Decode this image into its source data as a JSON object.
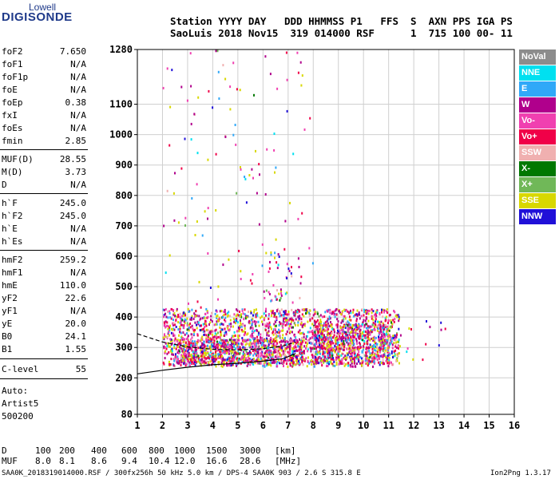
{
  "logo": {
    "line1": "Lowell",
    "line2": "DIGISONDE"
  },
  "header": {
    "line1": "Station YYYY DAY   DDD HHMMSS P1   FFS  S  AXN PPS IGA PS",
    "line2": "SaoLuis 2018 Nov15  319 014000 RSF      1  715 100 00- 11"
  },
  "params": [
    {
      "name": "foF2",
      "value": "7.650"
    },
    {
      "name": "foF1",
      "value": "N/A"
    },
    {
      "name": "foF1p",
      "value": "N/A"
    },
    {
      "name": "foE",
      "value": "N/A"
    },
    {
      "name": "foEp",
      "value": "0.38"
    },
    {
      "name": "fxI",
      "value": "N/A"
    },
    {
      "name": "foEs",
      "value": "N/A"
    },
    {
      "name": "fmin",
      "value": "2.85"
    },
    {
      "name": "MUF(D)",
      "value": "28.55"
    },
    {
      "name": "M(D)",
      "value": "3.73"
    },
    {
      "name": "D",
      "value": "N/A"
    },
    {
      "name": "h`F",
      "value": "245.0"
    },
    {
      "name": "h`F2",
      "value": "245.0"
    },
    {
      "name": "h`E",
      "value": "N/A"
    },
    {
      "name": "h`Es",
      "value": "N/A"
    },
    {
      "name": "hmF2",
      "value": "259.2"
    },
    {
      "name": "hmF1",
      "value": "N/A"
    },
    {
      "name": "hmE",
      "value": "110.0"
    },
    {
      "name": "yF2",
      "value": "22.6"
    },
    {
      "name": "yF1",
      "value": "N/A"
    },
    {
      "name": "yE",
      "value": "20.0"
    },
    {
      "name": "B0",
      "value": "24.1"
    },
    {
      "name": "B1",
      "value": "1.55"
    }
  ],
  "clevel": {
    "name": "C-level",
    "value": "55"
  },
  "auto": {
    "line1": "Auto:",
    "line2": "Artist5",
    "line3": "500200"
  },
  "legend": [
    {
      "label": "NoVal",
      "color": "#8c8c8c"
    },
    {
      "label": "NNE",
      "color": "#00e0f0"
    },
    {
      "label": "E",
      "color": "#30a8f8"
    },
    {
      "label": "W",
      "color": "#b0008c"
    },
    {
      "label": "Vo-",
      "color": "#f040b0"
    },
    {
      "label": "Vo+",
      "color": "#f00048"
    },
    {
      "label": "SSW",
      "color": "#f0b0b0"
    },
    {
      "label": "X-",
      "color": "#007800"
    },
    {
      "label": "X+",
      "color": "#70b858"
    },
    {
      "label": "SSE",
      "color": "#d8d800"
    },
    {
      "label": "NNW",
      "color": "#2010d8"
    }
  ],
  "muf_table": {
    "d_label": "D",
    "d_values": [
      "100",
      "200",
      "400",
      "600",
      "800",
      "1000",
      "1500",
      "3000"
    ],
    "d_unit": "[km]",
    "muf_label": "MUF",
    "muf_values": [
      "8.0",
      "8.1",
      "8.6",
      "9.4",
      "10.4",
      "12.0",
      "16.6",
      "28.6"
    ],
    "muf_unit": "[MHz]"
  },
  "footer": {
    "info": "SAA0K_2018319014000.RSF / 300fx256h 50 kHz 5.0 km / DPS-4 SAA0K 903 / 2.6 S 315.8 E",
    "version": "Ion2Png 1.3.17"
  },
  "chart_data": {
    "type": "scatter",
    "x_ticks": [
      1,
      2,
      3,
      4,
      5,
      6,
      7,
      8,
      9,
      10,
      11,
      12,
      13,
      14,
      15,
      16
    ],
    "y_ticks": [
      80,
      200,
      300,
      400,
      500,
      600,
      700,
      800,
      900,
      1000,
      1100,
      1280
    ],
    "xlim": [
      1,
      16
    ],
    "ylim": [
      80,
      1280
    ],
    "grid": true,
    "legend_position": "right",
    "traces": [
      {
        "style": "solid",
        "x": [
          1.0,
          2.0,
          3.0,
          4.0,
          5.0,
          6.0,
          6.8,
          7.3
        ],
        "y": [
          213,
          225,
          235,
          243,
          248,
          255,
          263,
          280
        ]
      },
      {
        "style": "dashed",
        "x": [
          1.0,
          2.0,
          3.0,
          4.0,
          5.0,
          6.0,
          6.8,
          7.3
        ],
        "y": [
          345,
          318,
          302,
          294,
          292,
          296,
          305,
          318
        ]
      }
    ],
    "echo_regions": [
      {
        "x": [
          2.0,
          11.4
        ],
        "y": [
          240,
          430
        ],
        "density": 0.55
      },
      {
        "x": [
          2.5,
          7.6
        ],
        "y": [
          250,
          330
        ],
        "density": 0.9
      },
      {
        "x": [
          8.0,
          11.0
        ],
        "y": [
          250,
          380
        ],
        "density": 0.7
      },
      {
        "x": [
          6.0,
          7.5
        ],
        "y": [
          320,
          640
        ],
        "density": 0.08
      },
      {
        "x": [
          2.0,
          8.0
        ],
        "y": [
          430,
          1280
        ],
        "density": 0.012
      },
      {
        "x": [
          11.0,
          13.3
        ],
        "y": [
          255,
          390
        ],
        "density": 0.03
      }
    ]
  }
}
